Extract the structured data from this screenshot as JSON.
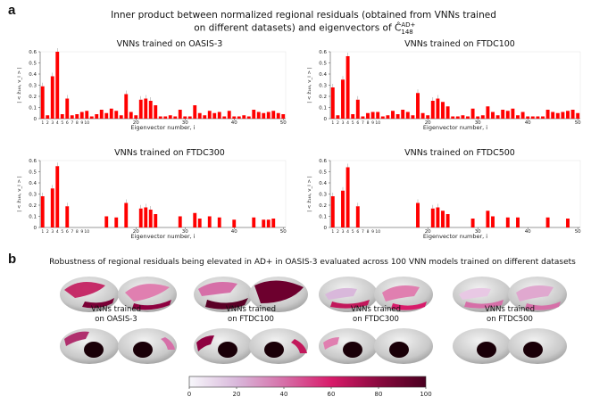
{
  "panel_a": {
    "letter": "a",
    "title_line1": "Inner product between normalized regional residuals (obtained from VNNs trained",
    "title_line2": "on different datasets) and eigenvectors of Ĉ",
    "title_sup": "AD+",
    "title_sub": "148"
  },
  "panel_b": {
    "letter": "b",
    "title": "Robustness of regional residuals being elevated in AD+ in OASIS-3 evaluated across 100 VNN models trained on different datasets",
    "captions": [
      {
        "line1": "VNNs trained",
        "line2": "on OASIS-3"
      },
      {
        "line1": "VNNs trained",
        "line2": "on FTDC100"
      },
      {
        "line1": "VNNs trained",
        "line2": "on FTDC300"
      },
      {
        "line1": "VNNs trained",
        "line2": "on FTDC500"
      }
    ],
    "colorbar": {
      "ticks": [
        "0",
        "20",
        "40",
        "60",
        "80",
        "100"
      ],
      "colors": [
        "#f7f7fb",
        "#d9b8db",
        "#d66fa8",
        "#d81b6a",
        "#8a0a3f",
        "#4a0020"
      ]
    }
  },
  "chart_data": [
    {
      "type": "bar",
      "title": "VNNs trained on OASIS-3",
      "xlabel": "Eigenvector number, i",
      "ylabel": "| < ẑ₁₄₈, v_i > |",
      "ylim": [
        0,
        0.6
      ],
      "yticks": [
        "0",
        "0.1",
        "0.2",
        "0.3",
        "0.4",
        "0.5",
        "0.6"
      ],
      "xticks_small": [
        "1",
        "2",
        "3",
        "4",
        "5",
        "6",
        "7",
        "8",
        "9",
        "10"
      ],
      "xticks_major": [
        "20",
        "30",
        "40",
        "50"
      ],
      "bar_color": "#ff0000",
      "x": [
        1,
        2,
        3,
        4,
        5,
        6,
        7,
        8,
        9,
        10,
        11,
        12,
        13,
        14,
        15,
        16,
        17,
        18,
        19,
        20,
        21,
        22,
        23,
        24,
        25,
        26,
        27,
        28,
        29,
        30,
        31,
        32,
        33,
        34,
        35,
        36,
        37,
        38,
        39,
        40,
        41,
        42,
        43,
        44,
        45,
        46,
        47,
        48,
        49,
        50
      ],
      "values": [
        0.29,
        0.03,
        0.38,
        0.6,
        0.04,
        0.18,
        0.03,
        0.04,
        0.06,
        0.07,
        0.02,
        0.04,
        0.08,
        0.05,
        0.09,
        0.07,
        0.03,
        0.22,
        0.06,
        0.03,
        0.17,
        0.18,
        0.16,
        0.12,
        0.02,
        0.02,
        0.03,
        0.02,
        0.08,
        0.02,
        0.02,
        0.12,
        0.05,
        0.03,
        0.07,
        0.05,
        0.06,
        0.02,
        0.07,
        0.02,
        0.02,
        0.03,
        0.02,
        0.08,
        0.06,
        0.05,
        0.06,
        0.07,
        0.05,
        0.04
      ]
    },
    {
      "type": "bar",
      "title": "VNNs trained on FTDC100",
      "xlabel": "Eigenvector number, i",
      "ylabel": "| < ẑ₁₄₈, v_i > |",
      "ylim": [
        0,
        0.6
      ],
      "yticks": [
        "0",
        "0.1",
        "0.2",
        "0.3",
        "0.4",
        "0.5",
        "0.6"
      ],
      "xticks_small": [
        "1",
        "2",
        "3",
        "4",
        "5",
        "6",
        "7",
        "8",
        "9",
        "10"
      ],
      "xticks_major": [
        "20",
        "30",
        "40",
        "50"
      ],
      "bar_color": "#ff0000",
      "x": [
        1,
        2,
        3,
        4,
        5,
        6,
        7,
        8,
        9,
        10,
        11,
        12,
        13,
        14,
        15,
        16,
        17,
        18,
        19,
        20,
        21,
        22,
        23,
        24,
        25,
        26,
        27,
        28,
        29,
        30,
        31,
        32,
        33,
        34,
        35,
        36,
        37,
        38,
        39,
        40,
        41,
        42,
        43,
        44,
        45,
        46,
        47,
        48,
        49,
        50
      ],
      "values": [
        0.28,
        0.03,
        0.35,
        0.56,
        0.04,
        0.17,
        0.02,
        0.05,
        0.06,
        0.06,
        0.02,
        0.03,
        0.07,
        0.04,
        0.08,
        0.06,
        0.03,
        0.23,
        0.05,
        0.03,
        0.16,
        0.18,
        0.15,
        0.11,
        0.02,
        0.02,
        0.03,
        0.02,
        0.09,
        0.02,
        0.03,
        0.11,
        0.06,
        0.03,
        0.08,
        0.07,
        0.09,
        0.03,
        0.06,
        0.02,
        0.02,
        0.02,
        0.02,
        0.08,
        0.06,
        0.05,
        0.06,
        0.07,
        0.08,
        0.05
      ]
    },
    {
      "type": "bar",
      "title": "VNNs trained on FTDC300",
      "xlabel": "Eigenvector number, i",
      "ylabel": "| < ẑ₁₄₈, v_i > |",
      "ylim": [
        0,
        0.6
      ],
      "yticks": [
        "0",
        "0.1",
        "0.2",
        "0.3",
        "0.4",
        "0.5",
        "0.6"
      ],
      "xticks_small": [
        "1",
        "2",
        "3",
        "4",
        "5",
        "6",
        "7",
        "8",
        "9",
        "10"
      ],
      "xticks_major": [
        "20",
        "30",
        "40",
        "50"
      ],
      "bar_color": "#ff0000",
      "x": [
        1,
        2,
        3,
        4,
        5,
        6,
        7,
        8,
        9,
        10,
        11,
        12,
        13,
        14,
        15,
        16,
        17,
        18,
        19,
        20,
        21,
        22,
        23,
        24,
        25,
        26,
        27,
        28,
        29,
        30,
        31,
        32,
        33,
        34,
        35,
        36,
        37,
        38,
        39,
        40,
        41,
        42,
        43,
        44,
        45,
        46,
        47,
        48,
        49,
        50
      ],
      "values": [
        0.28,
        0,
        0.35,
        0.55,
        0,
        0.19,
        0,
        0,
        0,
        0,
        0,
        0,
        0,
        0.1,
        0,
        0.09,
        0,
        0.22,
        0,
        0,
        0.17,
        0.18,
        0.16,
        0.12,
        0,
        0,
        0,
        0,
        0.1,
        0,
        0,
        0.13,
        0.08,
        0,
        0.1,
        0,
        0.09,
        0,
        0,
        0.07,
        0,
        0,
        0,
        0.09,
        0,
        0.07,
        0.07,
        0.08,
        0,
        0
      ],
      "hidden_xticks": [
        "8",
        "9",
        "10"
      ]
    },
    {
      "type": "bar",
      "title": "VNNs trained on FTDC500",
      "xlabel": "Eigenvector number, i",
      "ylabel": "| < ẑ₁₄₈, v_i > |",
      "ylim": [
        0,
        0.6
      ],
      "yticks": [
        "0",
        "0.1",
        "0.2",
        "0.3",
        "0.4",
        "0.5",
        "0.6"
      ],
      "xticks_small": [
        "1",
        "2",
        "3",
        "4",
        "5",
        "6",
        "7",
        "8",
        "9",
        "10"
      ],
      "xticks_major": [
        "20",
        "30",
        "40",
        "50"
      ],
      "bar_color": "#ff0000",
      "x": [
        1,
        2,
        3,
        4,
        5,
        6,
        7,
        8,
        9,
        10,
        11,
        12,
        13,
        14,
        15,
        16,
        17,
        18,
        19,
        20,
        21,
        22,
        23,
        24,
        25,
        26,
        27,
        28,
        29,
        30,
        31,
        32,
        33,
        34,
        35,
        36,
        37,
        38,
        39,
        40,
        41,
        42,
        43,
        44,
        45,
        46,
        47,
        48,
        49,
        50
      ],
      "values": [
        0.28,
        0,
        0.33,
        0.54,
        0,
        0.19,
        0,
        0,
        0,
        0,
        0,
        0,
        0,
        0,
        0,
        0,
        0,
        0.22,
        0,
        0,
        0.17,
        0.18,
        0.15,
        0.12,
        0,
        0,
        0,
        0,
        0.08,
        0,
        0,
        0.15,
        0.1,
        0,
        0,
        0.09,
        0,
        0.09,
        0,
        0,
        0,
        0,
        0,
        0.09,
        0,
        0,
        0,
        0.08,
        0,
        0
      ]
    }
  ]
}
